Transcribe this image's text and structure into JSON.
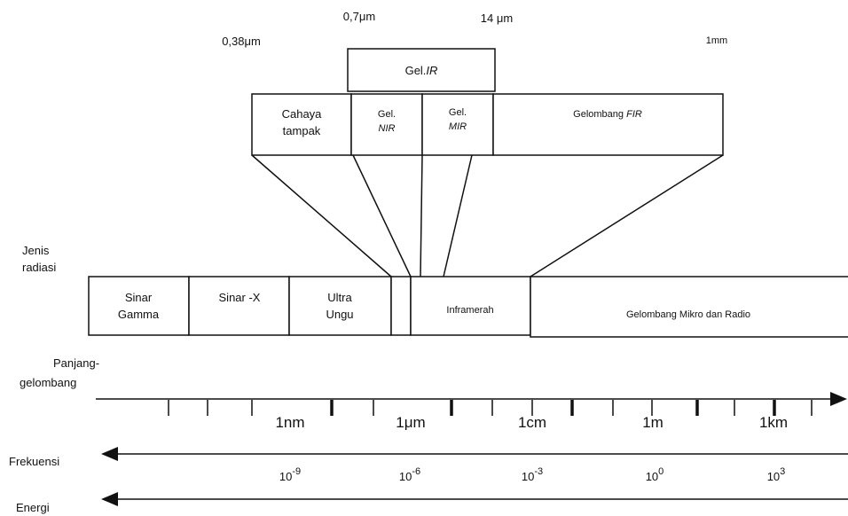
{
  "wavelength_marks": {
    "nir_start": "0,7μm",
    "mir_end": "14 μm",
    "visible_start": "0,38μm",
    "fir_end": "1mm"
  },
  "ir_box": {
    "prefix": "Gel.",
    "italic": "IR"
  },
  "sub_boxes": {
    "visible": [
      "Cahaya",
      "tampak"
    ],
    "nir": [
      "Gel.",
      "NIR"
    ],
    "mir": [
      "Gel.",
      "MIR"
    ],
    "fir": {
      "prefix": "Gelombang ",
      "italic": "FIR"
    }
  },
  "radiation_label": [
    "Jenis",
    "radiasi"
  ],
  "radiation_types": [
    [
      "Sinar",
      "Gamma"
    ],
    [
      "Sinar -X"
    ],
    [
      "Ultra",
      "Ungu"
    ],
    [
      "Inframerah"
    ],
    [
      "Gelombang Mikro dan Radio"
    ]
  ],
  "wavelength_label": [
    "Panjang-",
    "gelombang"
  ],
  "wavelength_scale": [
    "1nm",
    "1μm",
    "1cm",
    "1m",
    "1km"
  ],
  "frequency_label": "Frekuensi",
  "frequency_scale": [
    {
      "base": "10",
      "exp": "-9"
    },
    {
      "base": "10",
      "exp": "-6"
    },
    {
      "base": "10",
      "exp": "-3"
    },
    {
      "base": "10",
      "exp": "0"
    },
    {
      "base": "10",
      "exp": "3"
    }
  ],
  "energy_label": "Energi"
}
